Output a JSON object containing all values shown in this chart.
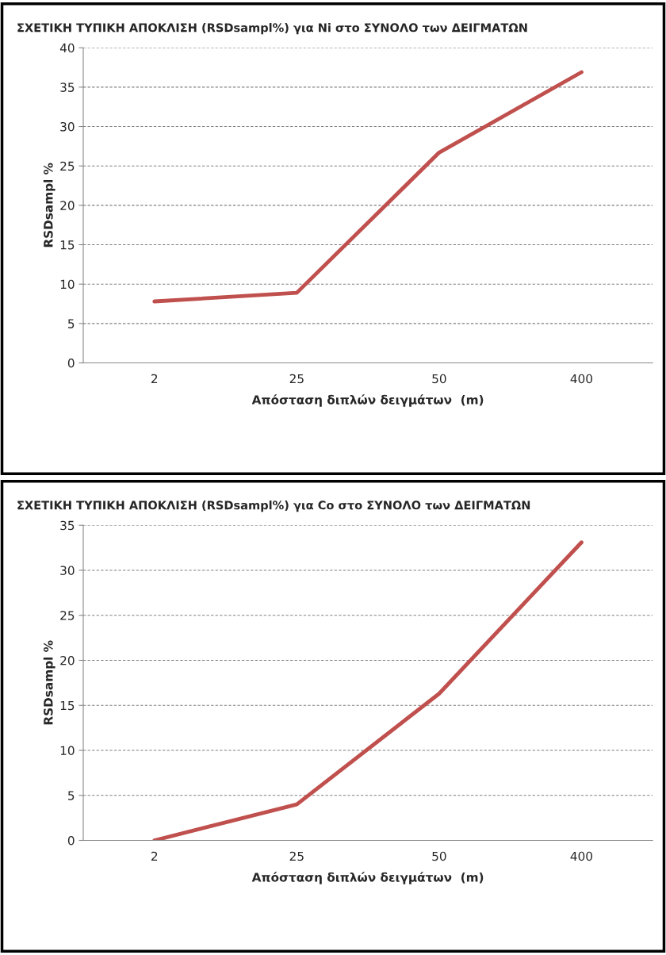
{
  "chart_data": [
    {
      "type": "line",
      "title": "ΣΧΕΤΙΚΗ ΤΥΠΙΚΗ ΑΠΟΚΛΙΣΗ (RSDsampl%) για Ni στο ΣΥΝΟΛΟ των ΔΕΙΓΜΑΤΩΝ",
      "xlabel": "Απόσταση διπλών δειγμάτων  (m)",
      "ylabel": "RSDsampl %",
      "categories": [
        "2",
        "25",
        "50",
        "400"
      ],
      "series": [
        {
          "color": "#c0504d",
          "values": [
            7.8,
            8.9,
            26.7,
            36.9
          ]
        }
      ],
      "ylim": [
        0,
        40
      ],
      "yticks": [
        0,
        5,
        10,
        15,
        20,
        25,
        30,
        35,
        40
      ],
      "grid": "y",
      "legend": false
    },
    {
      "type": "line",
      "title": "ΣΧΕΤΙΚΗ ΤΥΠΙΚΗ ΑΠΟΚΛΙΣΗ (RSDsampl%) για Co στο ΣΥΝΟΛΟ των ΔΕΙΓΜΑΤΩΝ",
      "xlabel": "Απόσταση διπλών δειγμάτων  (m)",
      "ylabel": "RSDsampl %",
      "categories": [
        "2",
        "25",
        "50",
        "400"
      ],
      "series": [
        {
          "color": "#c0504d",
          "values": [
            0,
            4.0,
            16.3,
            33.1
          ]
        }
      ],
      "ylim": [
        0,
        35
      ],
      "yticks": [
        0,
        5,
        10,
        15,
        20,
        25,
        30,
        35
      ],
      "grid": "y",
      "legend": false
    }
  ]
}
